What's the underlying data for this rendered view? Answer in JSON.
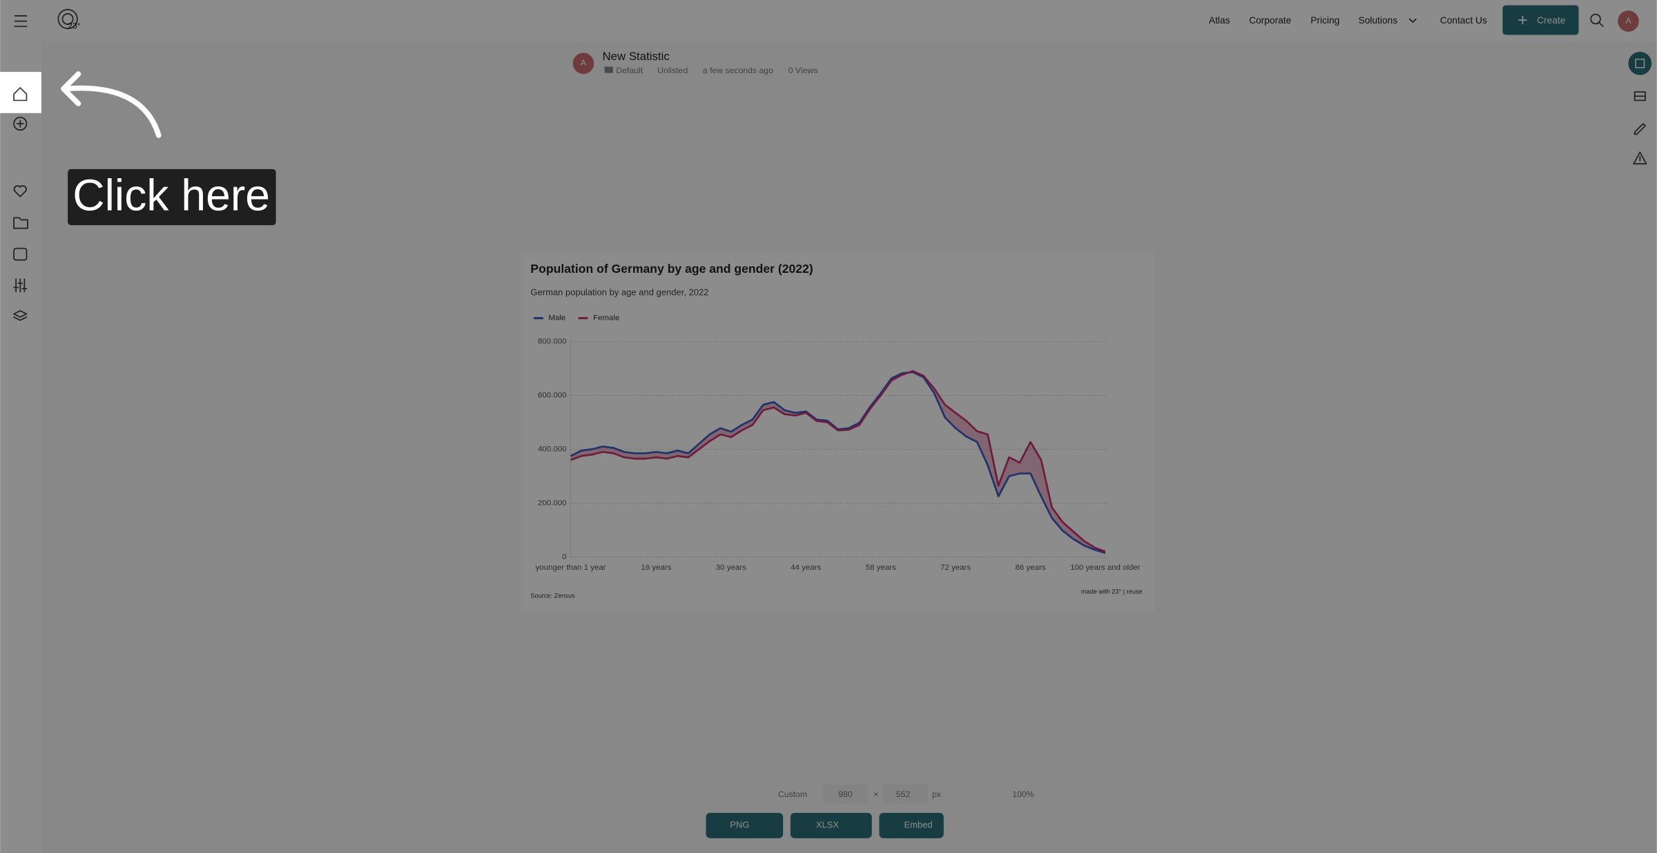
{
  "header": {
    "nav": [
      "Atlas",
      "Corporate",
      "Pricing",
      "Solutions",
      "Contact Us"
    ],
    "create": "Create",
    "avatar": "A"
  },
  "statistic": {
    "title": "New Statistic",
    "folder": "Default",
    "visibility": "Unlisted",
    "time": "a few seconds ago",
    "views": "0 Views",
    "avatar": "A"
  },
  "overlay": {
    "label": "Click here"
  },
  "chart_data": {
    "type": "line",
    "title": "Population of Germany by age and gender (2022)",
    "subtitle": "German population by age and gender, 2022",
    "categories": [
      "younger than 1 year",
      null,
      null,
      null,
      null,
      null,
      null,
      null,
      "16 years",
      null,
      null,
      null,
      null,
      null,
      null,
      "30 years",
      null,
      null,
      null,
      null,
      null,
      null,
      "44 years",
      null,
      null,
      null,
      null,
      null,
      null,
      "58 years",
      null,
      null,
      null,
      null,
      null,
      null,
      "72 years",
      null,
      null,
      null,
      null,
      null,
      null,
      "86 years",
      null,
      null,
      null,
      null,
      null,
      null,
      "100 years and older"
    ],
    "series": [
      {
        "name": "Male",
        "color": "#3b5fc4",
        "values": [
          375000,
          395000,
          400000,
          410000,
          405000,
          390000,
          385000,
          385000,
          390000,
          385000,
          395000,
          385000,
          420000,
          455000,
          478000,
          465000,
          490000,
          510000,
          565000,
          575000,
          545000,
          535000,
          540000,
          510000,
          506000,
          474000,
          478000,
          498000,
          557000,
          608000,
          663000,
          682000,
          686000,
          667000,
          608000,
          518000,
          478000,
          447000,
          427000,
          341000,
          225000,
          300000,
          310000,
          310000,
          225000,
          145000,
          98000,
          67000,
          43000,
          27000,
          15000
        ]
      },
      {
        "name": "Female",
        "color": "#c8336f",
        "values": [
          360000,
          375000,
          380000,
          390000,
          385000,
          370000,
          365000,
          365000,
          370000,
          365000,
          375000,
          370000,
          400000,
          430000,
          455000,
          445000,
          470000,
          490000,
          545000,
          555000,
          530000,
          525000,
          535000,
          505000,
          500000,
          470000,
          472000,
          490000,
          550000,
          600000,
          655000,
          676000,
          690000,
          672000,
          625000,
          565000,
          535000,
          505000,
          467000,
          455000,
          265000,
          370000,
          350000,
          427000,
          360000,
          184000,
          130000,
          95000,
          60000,
          35000,
          20000
        ]
      }
    ],
    "ylim": [
      0,
      800000
    ],
    "yticks": [
      0,
      {
        "value": 200000,
        "label": "200.000"
      },
      {
        "value": 400000,
        "label": "400.000"
      },
      {
        "value": 600000,
        "label": "600.000"
      },
      {
        "value": 800000,
        "label": "800.000"
      }
    ],
    "grid": true,
    "source": "Source: Zensus",
    "credit": "made with 23° | reuse"
  },
  "toolbar": {
    "preset": "Custom",
    "width": "980",
    "times": "×",
    "height": "552",
    "unit": "px",
    "zoom": "100%",
    "png": "PNG",
    "xlsx": "XLSX",
    "embed": "Embed"
  }
}
